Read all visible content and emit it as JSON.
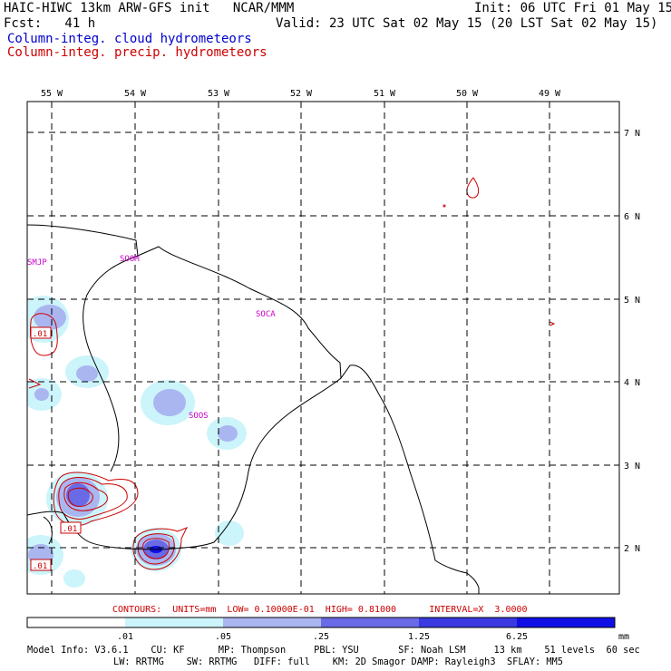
{
  "header": {
    "title": "HAIC-HIWC 13km ARW-GFS init   NCAR/MMM",
    "init": "Init: 06 UTC Fri 01 May 15",
    "fcst": "Fcst:   41 h",
    "valid": "Valid: 23 UTC Sat 02 May 15 (20 LST Sat 02 May 15)",
    "legend_cloud": "Column-integ. cloud hydrometeors",
    "legend_precip": "Column-integ. precip. hydrometeors"
  },
  "colors": {
    "cloud_legend": "#0000cc",
    "precip": "#cc0000",
    "station": "#cc00cc",
    "shade_1": "#ccf4fb",
    "shade_2": "#aab6f0",
    "shade_3": "#6a6ae6",
    "shade_4": "#3a3ae0",
    "shade_5": "#1010e6"
  },
  "map": {
    "lon_labels": [
      "55 W",
      "54 W",
      "53 W",
      "52 W",
      "51 W",
      "50 W",
      "49 W"
    ],
    "lat_labels": [
      "7 N",
      "6 N",
      "5 N",
      "4 N",
      "3 N",
      "2 N"
    ],
    "stations": [
      "SMJP",
      "SOOM",
      "SOCA",
      "SOOS"
    ],
    "contour_labels": [
      ".01",
      ".01",
      ".01"
    ]
  },
  "contour_info": {
    "label": "CONTOURS:  UNITS=mm  LOW= 0.10000E-01  HIGH= 0.81000      INTERVAL=X  3.0000"
  },
  "colorbar": {
    "ticks": [
      ".01",
      ".05",
      ".25",
      "1.25",
      "6.25"
    ],
    "unit": "mm"
  },
  "model_info": {
    "line1": "Model Info: V3.6.1    CU: KF      MP: Thompson     PBL: YSU       SF: Noah LSM     13 km    51 levels  60 sec",
    "line2": "LW: RRTMG    SW: RRTMG   DIFF: full    KM: 2D Smagor DAMP: Rayleigh3  SFLAY: MM5"
  }
}
